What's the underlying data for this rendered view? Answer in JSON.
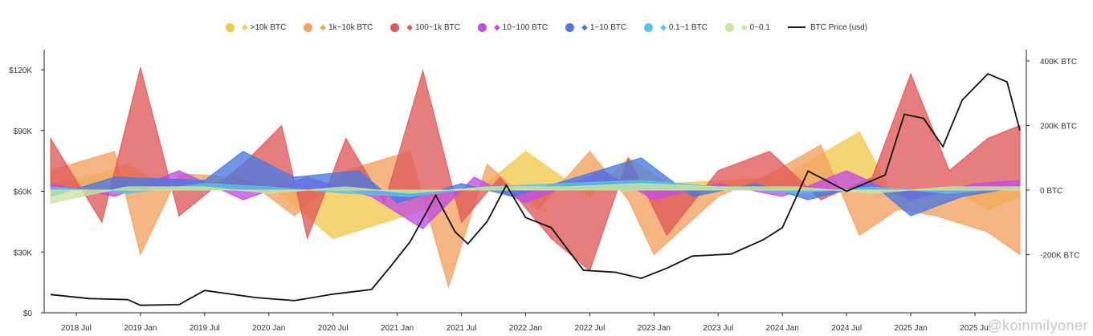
{
  "legend": [
    {
      "label": ">10k BTC",
      "color": "#f2c94c",
      "icon": "shark-icon"
    },
    {
      "label": "1k~10k BTC",
      "color": "#f4a261",
      "icon": "whale-icon"
    },
    {
      "label": "100~1k BTC",
      "color": "#e05a5a",
      "icon": "dolphin-icon"
    },
    {
      "label": "10~100 BTC",
      "color": "#c04de0",
      "icon": "fish-icon"
    },
    {
      "label": "1~10 BTC",
      "color": "#4a78e0",
      "icon": "crab-icon"
    },
    {
      "label": "0.1~1 BTC",
      "color": "#5bc2e7",
      "icon": "shrimp-icon"
    },
    {
      "label": "0~0.1",
      "color": "#c8e6a0",
      "icon": "plankton-icon"
    },
    {
      "label": "BTC Price (usd)",
      "color": "#111111",
      "icon": "line"
    }
  ],
  "watermark": "@koinmilyoner",
  "chart_data": {
    "type": "area",
    "x_ticks": [
      "2018 Jul",
      "2019 Jan",
      "2019 Jul",
      "2020 Jan",
      "2020 Jul",
      "2021 Jan",
      "2021 Jul",
      "2022 Jan",
      "2022 Jul",
      "2023 Jan",
      "2023 Jul",
      "2024 Jan",
      "2024 Jul",
      "2025 Jan",
      "2025 Jul"
    ],
    "y_left_ticks": [
      "$0",
      "$30K",
      "$60K",
      "$90K",
      "$120K"
    ],
    "y_left_range": [
      0,
      120000
    ],
    "y_right_ticks": [
      "-200K BTC",
      "0 BTC",
      "200K BTC",
      "400K BTC"
    ],
    "y_right_range": [
      -300000,
      400000
    ],
    "x_range": [
      "2018-03",
      "2025-11"
    ],
    "grid": false,
    "legend_position": "top",
    "series": [
      {
        "name": ">10k BTC",
        "color": "#f2c94c",
        "points": [
          [
            2018.3,
            20000
          ],
          [
            2018.6,
            40000
          ],
          [
            2018.9,
            80000
          ],
          [
            2019.2,
            10000
          ],
          [
            2019.6,
            30000
          ],
          [
            2020.0,
            20000
          ],
          [
            2020.5,
            -150000
          ],
          [
            2020.9,
            -100000
          ],
          [
            2021.3,
            -50000
          ],
          [
            2021.7,
            20000
          ],
          [
            2022.0,
            120000
          ],
          [
            2022.5,
            -20000
          ],
          [
            2022.8,
            100000
          ],
          [
            2023.1,
            20000
          ],
          [
            2023.6,
            30000
          ],
          [
            2024.0,
            40000
          ],
          [
            2024.6,
            180000
          ],
          [
            2024.9,
            -50000
          ],
          [
            2025.3,
            10000
          ],
          [
            2025.6,
            -60000
          ],
          [
            2025.85,
            -20000
          ]
        ]
      },
      {
        "name": "1k~10k BTC",
        "color": "#f4a261",
        "points": [
          [
            2018.3,
            60000
          ],
          [
            2018.8,
            120000
          ],
          [
            2019.0,
            -200000
          ],
          [
            2019.3,
            50000
          ],
          [
            2019.8,
            40000
          ],
          [
            2020.2,
            -80000
          ],
          [
            2020.6,
            60000
          ],
          [
            2021.1,
            120000
          ],
          [
            2021.4,
            -300000
          ],
          [
            2021.7,
            80000
          ],
          [
            2022.1,
            -60000
          ],
          [
            2022.5,
            120000
          ],
          [
            2022.8,
            -30000
          ],
          [
            2023.0,
            -200000
          ],
          [
            2023.5,
            -20000
          ],
          [
            2023.9,
            50000
          ],
          [
            2024.3,
            140000
          ],
          [
            2024.6,
            -140000
          ],
          [
            2024.9,
            -60000
          ],
          [
            2025.2,
            -80000
          ],
          [
            2025.6,
            -130000
          ],
          [
            2025.85,
            -200000
          ]
        ]
      },
      {
        "name": "100~1k BTC",
        "color": "#e05a5a",
        "points": [
          [
            2018.3,
            160000
          ],
          [
            2018.7,
            -100000
          ],
          [
            2019.0,
            380000
          ],
          [
            2019.3,
            -80000
          ],
          [
            2019.8,
            80000
          ],
          [
            2020.1,
            200000
          ],
          [
            2020.3,
            -150000
          ],
          [
            2020.6,
            160000
          ],
          [
            2020.9,
            -40000
          ],
          [
            2021.2,
            370000
          ],
          [
            2021.5,
            -100000
          ],
          [
            2021.8,
            40000
          ],
          [
            2022.2,
            -150000
          ],
          [
            2022.5,
            -250000
          ],
          [
            2022.8,
            100000
          ],
          [
            2023.1,
            -140000
          ],
          [
            2023.5,
            60000
          ],
          [
            2023.9,
            120000
          ],
          [
            2024.3,
            -30000
          ],
          [
            2024.7,
            40000
          ],
          [
            2025.0,
            360000
          ],
          [
            2025.3,
            60000
          ],
          [
            2025.6,
            160000
          ],
          [
            2025.85,
            200000
          ]
        ]
      },
      {
        "name": "10~100 BTC",
        "color": "#c04de0",
        "points": [
          [
            2018.3,
            20000
          ],
          [
            2018.8,
            -20000
          ],
          [
            2019.3,
            60000
          ],
          [
            2019.8,
            -30000
          ],
          [
            2020.3,
            40000
          ],
          [
            2020.8,
            -20000
          ],
          [
            2021.2,
            -120000
          ],
          [
            2021.6,
            40000
          ],
          [
            2022.0,
            -40000
          ],
          [
            2022.6,
            60000
          ],
          [
            2023.0,
            -30000
          ],
          [
            2023.5,
            20000
          ],
          [
            2024.0,
            -20000
          ],
          [
            2024.5,
            60000
          ],
          [
            2025.0,
            -30000
          ],
          [
            2025.5,
            20000
          ],
          [
            2025.85,
            30000
          ]
        ]
      },
      {
        "name": "1~10 BTC",
        "color": "#4a78e0",
        "points": [
          [
            2018.3,
            -20000
          ],
          [
            2018.8,
            40000
          ],
          [
            2019.5,
            30000
          ],
          [
            2019.8,
            120000
          ],
          [
            2020.2,
            40000
          ],
          [
            2020.7,
            60000
          ],
          [
            2021.0,
            -40000
          ],
          [
            2021.5,
            20000
          ],
          [
            2021.9,
            -20000
          ],
          [
            2022.4,
            40000
          ],
          [
            2022.9,
            100000
          ],
          [
            2023.3,
            -20000
          ],
          [
            2023.8,
            20000
          ],
          [
            2024.2,
            -30000
          ],
          [
            2024.7,
            20000
          ],
          [
            2025.0,
            -80000
          ],
          [
            2025.4,
            -20000
          ],
          [
            2025.85,
            10000
          ]
        ]
      },
      {
        "name": "0.1~1 BTC",
        "color": "#5bc2e7",
        "points": [
          [
            2018.3,
            10000
          ],
          [
            2018.9,
            -10000
          ],
          [
            2019.5,
            20000
          ],
          [
            2020.0,
            10000
          ],
          [
            2020.6,
            -10000
          ],
          [
            2021.1,
            -20000
          ],
          [
            2021.7,
            10000
          ],
          [
            2022.3,
            20000
          ],
          [
            2022.9,
            30000
          ],
          [
            2023.5,
            10000
          ],
          [
            2024.1,
            -10000
          ],
          [
            2024.7,
            10000
          ],
          [
            2025.3,
            -10000
          ],
          [
            2025.85,
            10000
          ]
        ]
      },
      {
        "name": "0~0.1",
        "color": "#c8e6a0",
        "points": [
          [
            2018.3,
            -40000
          ],
          [
            2018.9,
            10000
          ],
          [
            2019.5,
            10000
          ],
          [
            2020.0,
            -10000
          ],
          [
            2020.6,
            10000
          ],
          [
            2021.1,
            -10000
          ],
          [
            2021.7,
            10000
          ],
          [
            2022.3,
            10000
          ],
          [
            2022.9,
            20000
          ],
          [
            2023.5,
            10000
          ],
          [
            2024.1,
            10000
          ],
          [
            2024.7,
            -10000
          ],
          [
            2025.3,
            10000
          ],
          [
            2025.85,
            10000
          ]
        ]
      }
    ],
    "price_series": {
      "name": "BTC Price (usd)",
      "color": "#111111",
      "points": [
        [
          2018.3,
          9000
        ],
        [
          2018.6,
          7000
        ],
        [
          2018.9,
          6500
        ],
        [
          2019.0,
          3700
        ],
        [
          2019.3,
          4000
        ],
        [
          2019.5,
          11000
        ],
        [
          2019.9,
          7500
        ],
        [
          2020.2,
          6000
        ],
        [
          2020.5,
          9200
        ],
        [
          2020.8,
          11500
        ],
        [
          2020.95,
          23000
        ],
        [
          2021.1,
          35000
        ],
        [
          2021.3,
          58000
        ],
        [
          2021.45,
          40000
        ],
        [
          2021.55,
          34000
        ],
        [
          2021.7,
          45000
        ],
        [
          2021.85,
          63000
        ],
        [
          2022.0,
          47000
        ],
        [
          2022.2,
          42000
        ],
        [
          2022.45,
          21000
        ],
        [
          2022.7,
          20000
        ],
        [
          2022.9,
          17000
        ],
        [
          2023.1,
          22000
        ],
        [
          2023.3,
          28000
        ],
        [
          2023.6,
          29000
        ],
        [
          2023.85,
          36000
        ],
        [
          2024.0,
          42000
        ],
        [
          2024.2,
          70000
        ],
        [
          2024.5,
          60000
        ],
        [
          2024.8,
          68000
        ],
        [
          2024.95,
          98000
        ],
        [
          2025.1,
          96000
        ],
        [
          2025.25,
          82000
        ],
        [
          2025.4,
          105000
        ],
        [
          2025.6,
          118000
        ],
        [
          2025.75,
          114000
        ],
        [
          2025.85,
          90000
        ]
      ]
    }
  }
}
